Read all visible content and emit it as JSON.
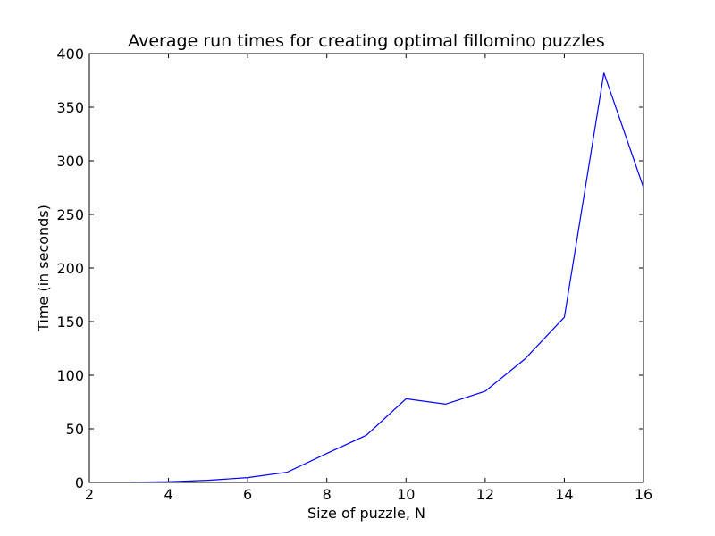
{
  "chart_data": {
    "type": "line",
    "title": "Average run times for creating optimal fillomino puzzles",
    "xlabel": "Size of puzzle, N",
    "ylabel": "Time (in seconds)",
    "xlim": [
      2,
      16
    ],
    "ylim": [
      0,
      400
    ],
    "xticks": [
      2,
      4,
      6,
      8,
      10,
      12,
      14,
      16
    ],
    "yticks": [
      0,
      50,
      100,
      150,
      200,
      250,
      300,
      350,
      400
    ],
    "grid": false,
    "legend": "none",
    "series": [
      {
        "color": "#0000ff",
        "x": [
          3,
          4,
          5,
          6,
          7,
          8,
          9,
          10,
          11,
          12,
          13,
          14,
          15,
          16
        ],
        "y": [
          0.1,
          0.6,
          2,
          4.5,
          9.5,
          27,
          44,
          78,
          73,
          85,
          115,
          154,
          382,
          275
        ]
      }
    ]
  }
}
